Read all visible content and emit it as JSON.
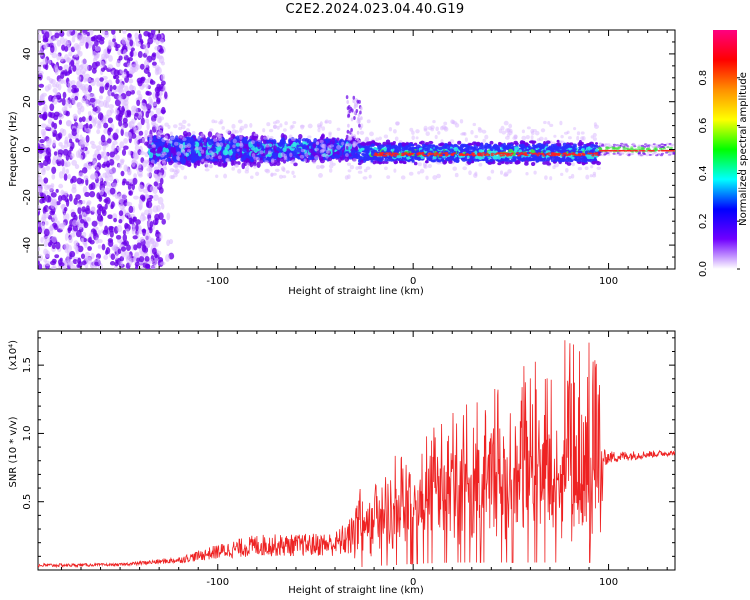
{
  "page": {
    "title": "C2E2.2024.023.04.40.G19"
  },
  "colors": {
    "axis": "#000000",
    "snr_line": "#ee2222",
    "spectrum_purple": "#6a00e8",
    "spectrum_light": "#d9b8ff",
    "spectrum_blue": "#2a2cff",
    "spectrum_cyan": "#2fe6e6",
    "spectrum_green": "#40e040",
    "spectrum_red": "#ff2020"
  },
  "chart_data": [
    {
      "type": "heatmap",
      "title": "C2E2.2024.023.04.40.G19",
      "xlabel": "Height of straight line (km)",
      "ylabel": "Frequency (Hz)",
      "xlim": [
        -192,
        134
      ],
      "ylim": [
        -50,
        50
      ],
      "x_ticks": [
        -100,
        0,
        100
      ],
      "y_ticks": [
        -40,
        -20,
        0,
        20,
        40
      ],
      "colorbar": {
        "label": "Normalized spectral amplitude",
        "range": [
          0,
          1
        ],
        "ticks": [
          "0.0",
          "0.2",
          "0.4",
          "0.6",
          "0.8"
        ],
        "colormap": [
          "#ff0080",
          "#ff0000",
          "#ff9000",
          "#ffff00",
          "#00ff00",
          "#00ffff",
          "#0000ff",
          "#7000ff",
          "#ffffff"
        ]
      },
      "regions": [
        {
          "x_range": [
            -192,
            -130
          ],
          "freq_range": [
            -50,
            50
          ],
          "amplitude": "low, scattered noise"
        },
        {
          "x_range": [
            -135,
            -28
          ],
          "freq_range": [
            -12,
            10
          ],
          "amplitude": "medium"
        },
        {
          "x_range": [
            -28,
            95
          ],
          "freq_range": [
            -6,
            4
          ],
          "amplitude": "high, centered near 0 Hz"
        },
        {
          "x_range": [
            95,
            134
          ],
          "freq_range": [
            -3,
            3
          ],
          "amplitude": "high, narrow line"
        }
      ]
    },
    {
      "type": "line",
      "xlabel": "Height of straight line (km)",
      "ylabel": "SNR (10 * v/v)",
      "y_multiplier": "(x10⁴)",
      "xlim": [
        -192,
        134
      ],
      "ylim": [
        0,
        1.75
      ],
      "x_ticks": [
        -100,
        0,
        100
      ],
      "y_ticks": [
        0.5,
        1.0,
        1.5
      ],
      "y_tick_labels": [
        "0.5",
        "1.0",
        "1.5"
      ],
      "envelope": {
        "x": [
          -192,
          -150,
          -120,
          -100,
          -80,
          -60,
          -40,
          -30,
          -28,
          -20,
          -10,
          0,
          10,
          20,
          30,
          40,
          50,
          60,
          70,
          80,
          90,
          95,
          97,
          100,
          110,
          120,
          134
        ],
        "baseline": [
          0.02,
          0.03,
          0.05,
          0.08,
          0.1,
          0.1,
          0.1,
          0.1,
          0.2,
          0.3,
          0.35,
          0.45,
          0.5,
          0.55,
          0.55,
          0.55,
          0.55,
          0.55,
          0.55,
          0.55,
          0.55,
          0.55,
          0.75,
          0.78,
          0.8,
          0.82,
          0.84
        ],
        "peak": [
          0.05,
          0.05,
          0.1,
          0.2,
          0.28,
          0.28,
          0.3,
          0.45,
          0.82,
          0.7,
          0.8,
          0.9,
          1.1,
          1.1,
          1.25,
          1.35,
          1.4,
          1.5,
          1.55,
          1.75,
          1.7,
          1.75,
          0.9,
          0.88,
          0.88,
          0.88,
          0.88
        ]
      }
    }
  ]
}
